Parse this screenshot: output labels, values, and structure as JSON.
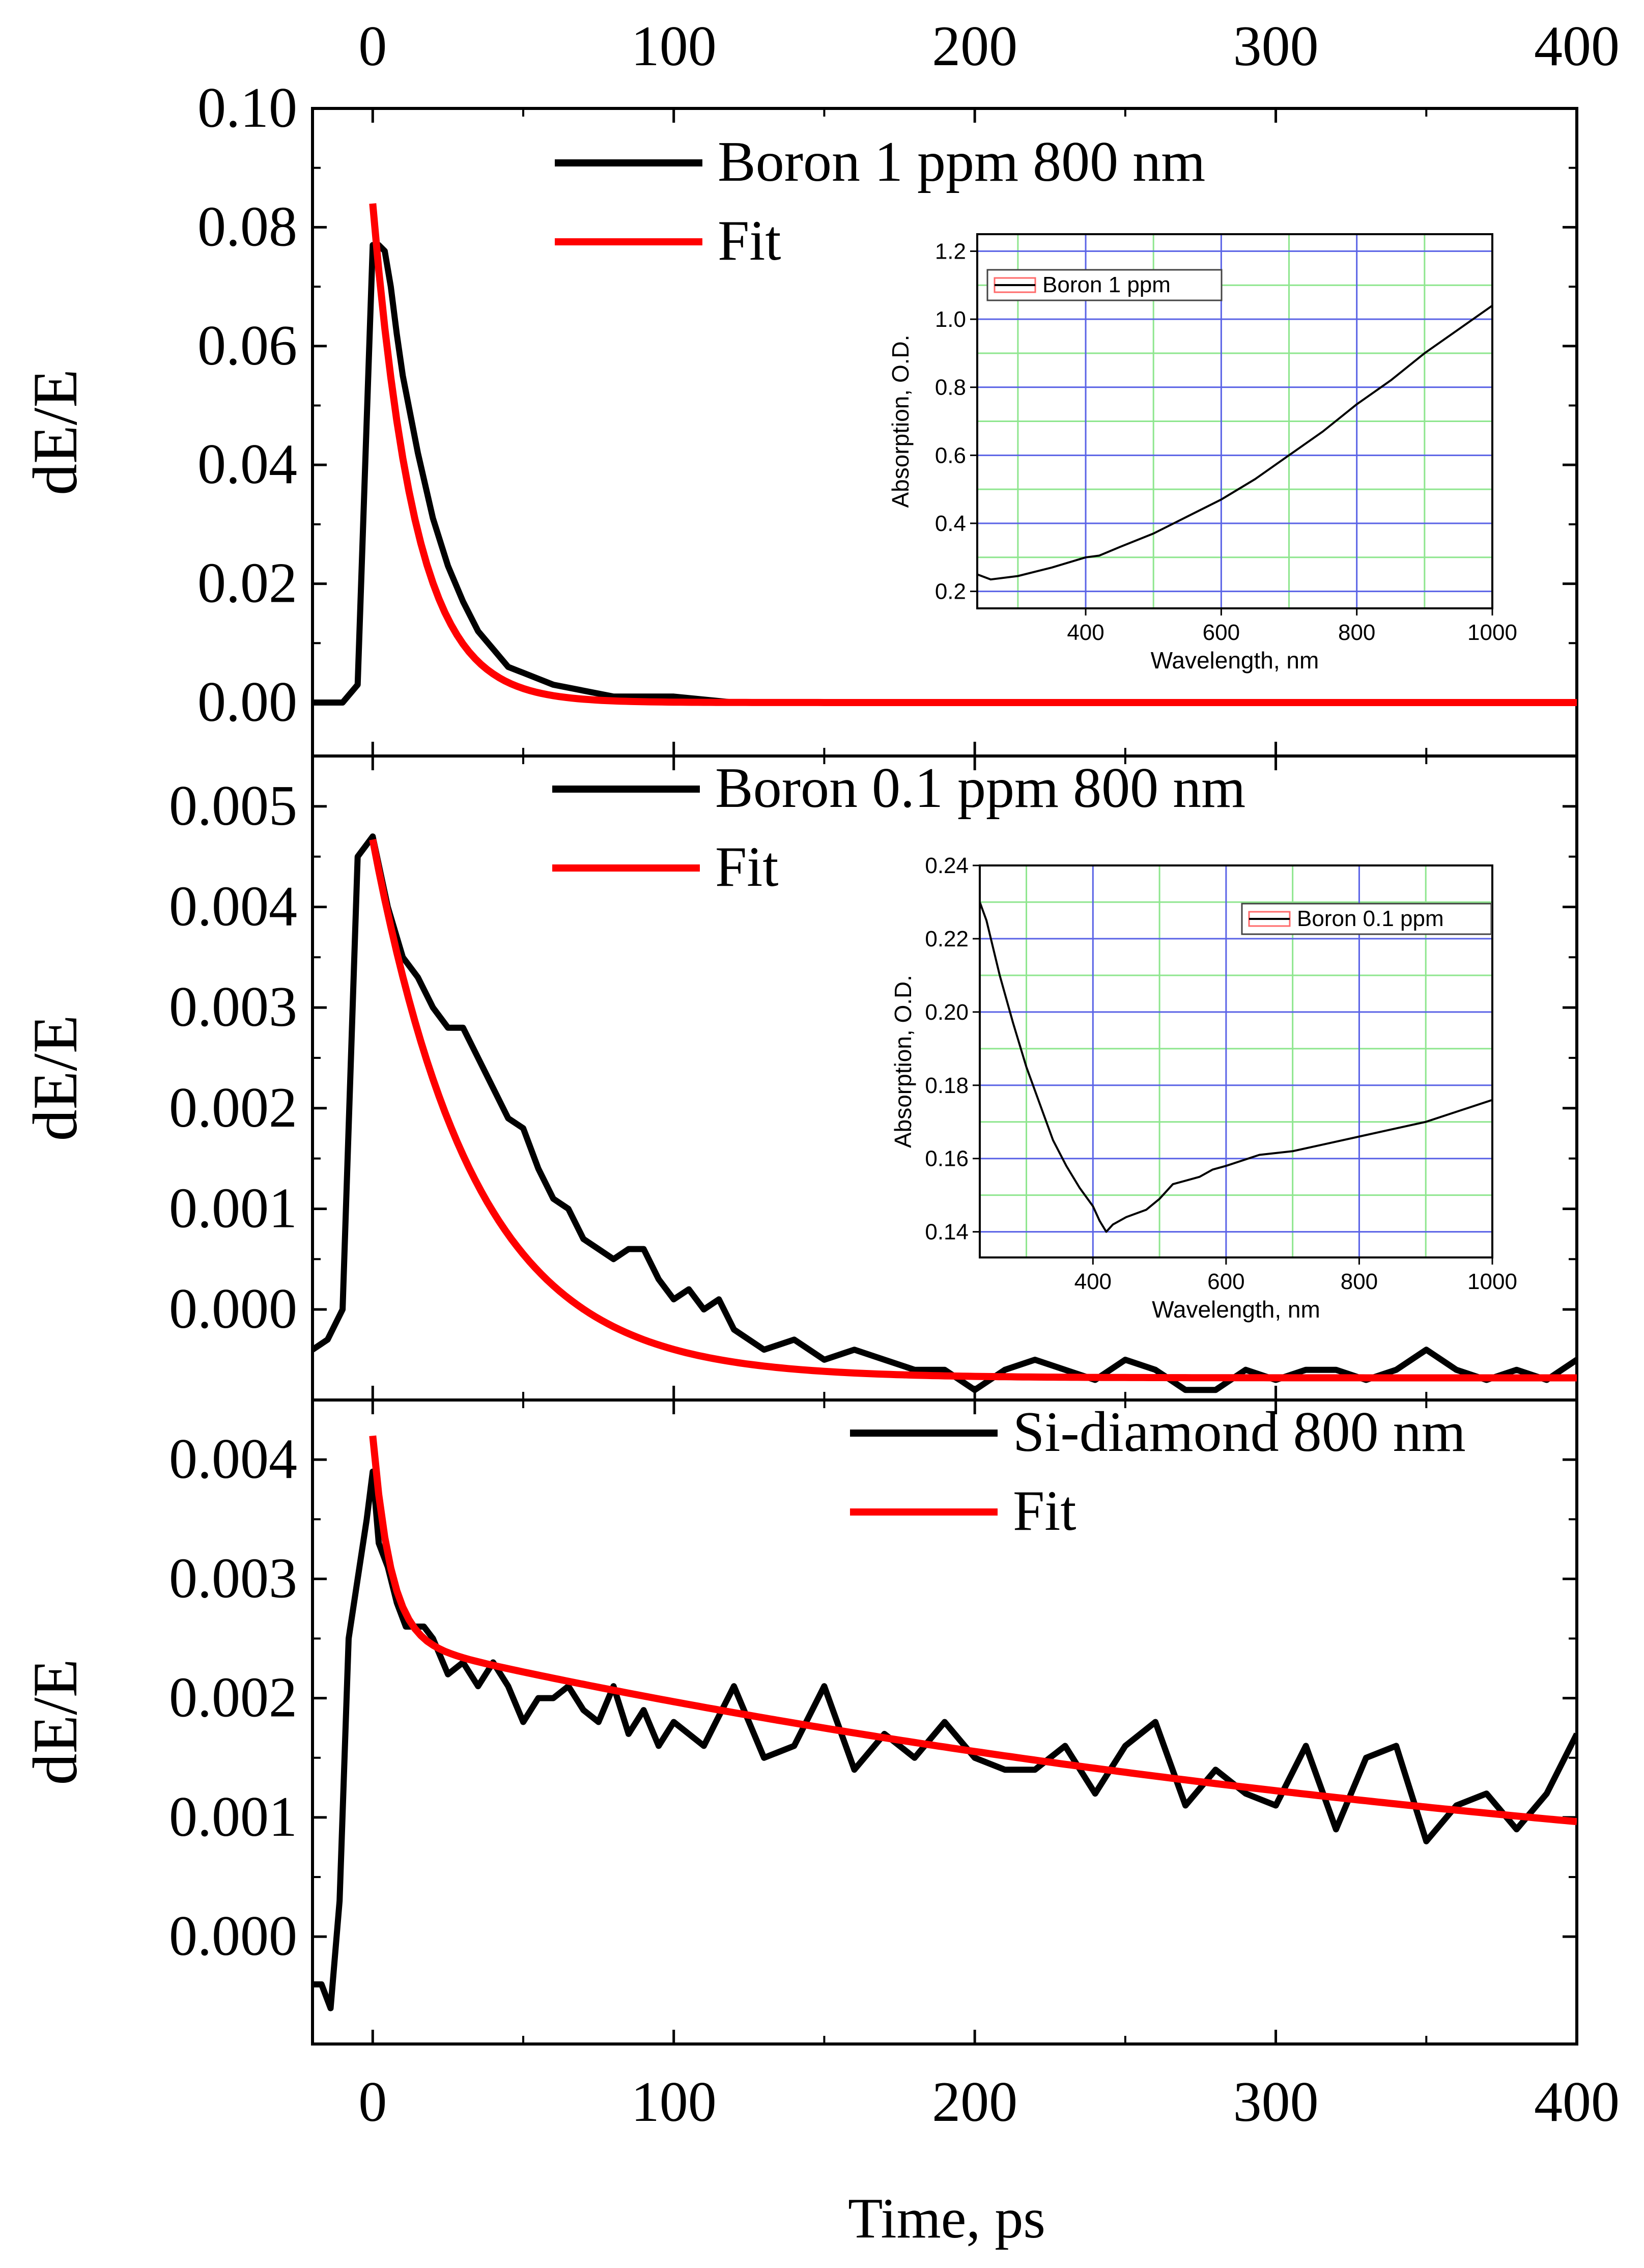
{
  "chart_data": {
    "type": "line",
    "x_axis": {
      "label": "Time, ps",
      "range": [
        -20,
        400
      ],
      "ticks": [
        0,
        100,
        200,
        300,
        400
      ],
      "tick_labels": [
        "0",
        "100",
        "200",
        "300",
        "400"
      ]
    },
    "panels": [
      {
        "id": "boron1",
        "ylabel": "dE/E",
        "ylim": [
          -0.009,
          0.1
        ],
        "yticks": [
          0.0,
          0.02,
          0.04,
          0.06,
          0.08,
          0.1
        ],
        "ytick_labels": [
          "0.00",
          "0.02",
          "0.04",
          "0.06",
          "0.08",
          "0.10"
        ],
        "legend": [
          "Boron 1 ppm 800 nm",
          "Fit"
        ],
        "data": {
          "x": [
            -20,
            -10,
            -5,
            0,
            1,
            2,
            4,
            6,
            8,
            10,
            15,
            20,
            25,
            30,
            35,
            40,
            45,
            50,
            55,
            60,
            70,
            80,
            90,
            100,
            120,
            140,
            160,
            180,
            200,
            220,
            240,
            260,
            270,
            280,
            300,
            320,
            340,
            360,
            380,
            400
          ],
          "y": [
            0.0,
            0.0,
            0.003,
            0.077,
            0.077,
            0.077,
            0.076,
            0.07,
            0.062,
            0.055,
            0.042,
            0.031,
            0.023,
            0.017,
            0.012,
            0.009,
            0.006,
            0.005,
            0.004,
            0.003,
            0.002,
            0.001,
            0.001,
            0.001,
            0.0,
            0.0,
            0.0,
            0.0,
            0.0,
            0.0,
            0.0,
            0.0,
            0.0,
            0.0,
            0.0,
            0.0,
            0.0,
            0.0,
            0.0,
            0.0
          ],
          "fit": {
            "offset": 0.0,
            "amplitude": 0.084,
            "tau": 14.0
          }
        },
        "inset": {
          "xlabel": "Wavelength, nm",
          "ylabel": "Absorption, O.D.",
          "xlim": [
            240,
            1000
          ],
          "ylim": [
            0.15,
            1.25
          ],
          "xticks": [
            400,
            600,
            800,
            1000
          ],
          "xtick_labels": [
            "400",
            "600",
            "800",
            "1000"
          ],
          "yticks": [
            0.2,
            0.4,
            0.6,
            0.8,
            1.0,
            1.2
          ],
          "ytick_labels": [
            "0.2",
            "0.4",
            "0.6",
            "0.8",
            "1.0",
            "1.2"
          ],
          "legend": "Boron 1 ppm",
          "x": [
            240,
            260,
            300,
            350,
            400,
            420,
            450,
            500,
            550,
            600,
            650,
            700,
            750,
            800,
            850,
            900,
            950,
            1000
          ],
          "y": [
            0.25,
            0.235,
            0.245,
            0.27,
            0.3,
            0.305,
            0.33,
            0.37,
            0.42,
            0.47,
            0.53,
            0.6,
            0.67,
            0.75,
            0.82,
            0.9,
            0.97,
            1.04
          ]
        }
      },
      {
        "id": "boron01",
        "ylabel": "dE/E",
        "ylim": [
          -0.0009,
          0.0055
        ],
        "yticks": [
          0.0,
          0.001,
          0.002,
          0.003,
          0.004,
          0.005
        ],
        "ytick_labels": [
          "0.000",
          "0.001",
          "0.002",
          "0.003",
          "0.004",
          "0.005"
        ],
        "legend": [
          "Boron 0.1 ppm 800 nm",
          "Fit"
        ],
        "data": {
          "x": [
            -20,
            -15,
            -10,
            -5,
            0,
            5,
            10,
            15,
            20,
            25,
            30,
            35,
            40,
            45,
            50,
            55,
            60,
            65,
            70,
            75,
            80,
            85,
            90,
            95,
            100,
            105,
            110,
            115,
            120,
            130,
            140,
            150,
            160,
            170,
            180,
            190,
            200,
            210,
            220,
            230,
            240,
            250,
            260,
            270,
            280,
            290,
            300,
            310,
            320,
            330,
            340,
            350,
            360,
            370,
            380,
            390,
            400
          ],
          "y": [
            -0.0004,
            -0.0003,
            0.0,
            0.0045,
            0.0047,
            0.004,
            0.0035,
            0.0033,
            0.003,
            0.0028,
            0.0028,
            0.0025,
            0.0022,
            0.0019,
            0.0018,
            0.0014,
            0.0011,
            0.001,
            0.0007,
            0.0006,
            0.0005,
            0.0006,
            0.0006,
            0.0003,
            0.0001,
            0.0002,
            0.0,
            0.0001,
            -0.0002,
            -0.0004,
            -0.0003,
            -0.0005,
            -0.0004,
            -0.0005,
            -0.0006,
            -0.0006,
            -0.0008,
            -0.0006,
            -0.0005,
            -0.0006,
            -0.0007,
            -0.0005,
            -0.0006,
            -0.0008,
            -0.0008,
            -0.0006,
            -0.0007,
            -0.0006,
            -0.0006,
            -0.0007,
            -0.0006,
            -0.0004,
            -0.0006,
            -0.0007,
            -0.0006,
            -0.0007,
            -0.0005
          ],
          "fit": {
            "offset": -0.00068,
            "amplitude": 0.00535,
            "tau": 34.0
          }
        },
        "inset": {
          "xlabel": "Wavelength, nm",
          "ylabel": "Absorption, O.D.",
          "xlim": [
            230,
            1000
          ],
          "ylim": [
            0.133,
            0.24
          ],
          "xticks": [
            400,
            600,
            800,
            1000
          ],
          "xtick_labels": [
            "400",
            "600",
            "800",
            "1000"
          ],
          "yticks": [
            0.14,
            0.16,
            0.18,
            0.2,
            0.22,
            0.24
          ],
          "ytick_labels": [
            "0.14",
            "0.16",
            "0.18",
            "0.20",
            "0.22",
            "0.24"
          ],
          "legend": "Boron 0.1 ppm",
          "x": [
            230,
            240,
            260,
            280,
            300,
            320,
            340,
            360,
            380,
            400,
            410,
            420,
            430,
            450,
            480,
            500,
            520,
            540,
            560,
            580,
            600,
            650,
            700,
            750,
            800,
            850,
            900,
            950,
            1000
          ],
          "y": [
            0.23,
            0.225,
            0.21,
            0.197,
            0.185,
            0.175,
            0.165,
            0.158,
            0.152,
            0.147,
            0.143,
            0.14,
            0.142,
            0.144,
            0.146,
            0.149,
            0.153,
            0.154,
            0.155,
            0.157,
            0.158,
            0.161,
            0.162,
            0.164,
            0.166,
            0.168,
            0.17,
            0.173,
            0.176
          ]
        }
      },
      {
        "id": "sidiamond",
        "ylabel": "dE/E",
        "ylim": [
          -0.0009,
          0.0045
        ],
        "yticks": [
          0.0,
          0.001,
          0.002,
          0.003,
          0.004
        ],
        "ytick_labels": [
          "0.000",
          "0.001",
          "0.002",
          "0.003",
          "0.004"
        ],
        "legend": [
          "Si-diamond 800 nm",
          "Fit"
        ],
        "data": {
          "x": [
            -20,
            -17,
            -14,
            -11,
            -8,
            -5,
            -2,
            0,
            2,
            5,
            8,
            11,
            14,
            17,
            20,
            25,
            30,
            35,
            40,
            45,
            50,
            55,
            60,
            65,
            70,
            75,
            80,
            85,
            90,
            95,
            100,
            110,
            120,
            130,
            140,
            150,
            160,
            170,
            180,
            190,
            200,
            210,
            220,
            230,
            240,
            250,
            260,
            270,
            280,
            290,
            300,
            310,
            320,
            330,
            340,
            350,
            360,
            370,
            380,
            390,
            400
          ],
          "y": [
            -0.0004,
            -0.0004,
            -0.0006,
            0.0003,
            0.0025,
            0.003,
            0.0035,
            0.0039,
            0.0033,
            0.0031,
            0.0028,
            0.0026,
            0.0026,
            0.0026,
            0.0025,
            0.0022,
            0.0023,
            0.0021,
            0.0023,
            0.0021,
            0.0018,
            0.002,
            0.002,
            0.0021,
            0.0019,
            0.0018,
            0.0021,
            0.0017,
            0.0019,
            0.0016,
            0.0018,
            0.0016,
            0.0021,
            0.0015,
            0.0016,
            0.0021,
            0.0014,
            0.0017,
            0.0015,
            0.0018,
            0.0015,
            0.0014,
            0.0014,
            0.0016,
            0.0012,
            0.0016,
            0.0018,
            0.0011,
            0.0014,
            0.0012,
            0.0011,
            0.0016,
            0.0009,
            0.0015,
            0.0016,
            0.0008,
            0.0011,
            0.0012,
            0.0009,
            0.0012,
            0.0017
          ],
          "fit": {
            "offset": 0.0,
            "a1": 0.0017,
            "t1": 6.0,
            "a2": 0.0025,
            "t2": 420.0
          }
        }
      }
    ]
  },
  "colors": {
    "data_line": "#000000",
    "fit_line": "#ff0000",
    "inset_grid_major": "#5a63e6",
    "inset_grid_minor": "#8ee68e",
    "inset_legend_swatch": "#ff6a6a"
  }
}
